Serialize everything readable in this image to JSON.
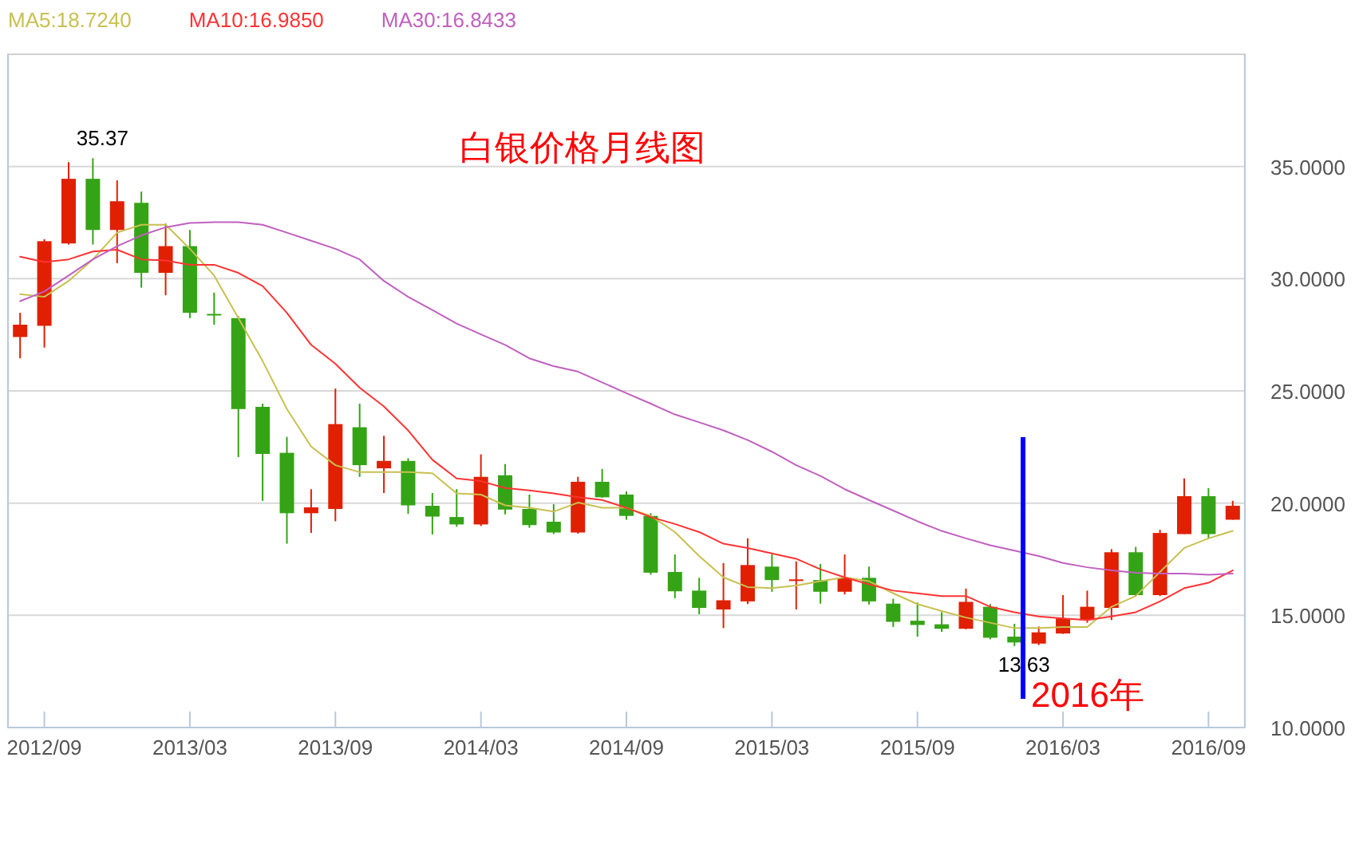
{
  "chart_data": {
    "type": "candlestick",
    "title": "白银价格月线图",
    "categories": [
      null,
      "2012/09",
      null,
      null,
      null,
      null,
      null,
      "2013/03",
      null,
      null,
      null,
      null,
      null,
      "2013/09",
      null,
      null,
      null,
      null,
      null,
      "2014/03",
      null,
      null,
      null,
      null,
      null,
      "2014/09",
      null,
      null,
      null,
      null,
      null,
      "2015/03",
      null,
      null,
      null,
      null,
      null,
      "2015/09",
      null,
      null,
      null,
      null,
      null,
      "2016/03",
      null,
      null,
      null,
      null,
      null,
      "2016/09",
      null
    ],
    "ohlc": [
      [
        27.4,
        28.48,
        26.45,
        27.95
      ],
      [
        27.9,
        31.76,
        26.93,
        31.67
      ],
      [
        31.57,
        35.19,
        31.52,
        34.45
      ],
      [
        34.45,
        35.37,
        31.52,
        32.17
      ],
      [
        32.17,
        34.38,
        30.69,
        33.45
      ],
      [
        33.38,
        33.88,
        29.6,
        30.26
      ],
      [
        30.26,
        32.45,
        29.26,
        31.45
      ],
      [
        31.45,
        32.17,
        28.24,
        28.48
      ],
      [
        28.43,
        29.38,
        27.95,
        28.38
      ],
      [
        28.24,
        28.33,
        22.05,
        24.19
      ],
      [
        24.29,
        24.43,
        20.1,
        22.19
      ],
      [
        22.24,
        22.95,
        18.19,
        19.55
      ],
      [
        19.55,
        20.62,
        18.67,
        19.81
      ],
      [
        19.74,
        25.1,
        19.19,
        23.52
      ],
      [
        23.38,
        24.43,
        21.17,
        21.69
      ],
      [
        21.55,
        23.0,
        20.45,
        21.88
      ],
      [
        21.88,
        22.0,
        19.52,
        19.9
      ],
      [
        19.88,
        20.45,
        18.6,
        19.4
      ],
      [
        19.38,
        20.62,
        18.95,
        19.05
      ],
      [
        19.05,
        22.17,
        18.98,
        21.17
      ],
      [
        21.24,
        21.74,
        19.5,
        19.71
      ],
      [
        19.74,
        20.38,
        18.9,
        19.02
      ],
      [
        19.17,
        19.95,
        18.62,
        18.69
      ],
      [
        18.69,
        21.17,
        18.64,
        20.95
      ],
      [
        20.95,
        21.52,
        20.24,
        20.26
      ],
      [
        20.38,
        20.52,
        19.26,
        19.43
      ],
      [
        19.43,
        19.55,
        16.81,
        16.9
      ],
      [
        16.93,
        17.71,
        15.76,
        16.07
      ],
      [
        16.1,
        16.67,
        15.05,
        15.33
      ],
      [
        15.26,
        17.33,
        14.43,
        15.67
      ],
      [
        15.62,
        18.43,
        15.5,
        17.24
      ],
      [
        17.17,
        17.71,
        16.05,
        16.57
      ],
      [
        16.55,
        17.4,
        15.26,
        16.6
      ],
      [
        16.57,
        17.29,
        15.52,
        16.05
      ],
      [
        16.05,
        17.71,
        15.93,
        16.67
      ],
      [
        16.67,
        17.17,
        15.48,
        15.62
      ],
      [
        15.52,
        15.74,
        14.48,
        14.71
      ],
      [
        14.76,
        15.57,
        14.05,
        14.57
      ],
      [
        14.6,
        15.14,
        14.26,
        14.4
      ],
      [
        14.4,
        16.19,
        14.38,
        15.6
      ],
      [
        15.38,
        15.5,
        13.93,
        14.0
      ],
      [
        14.05,
        14.62,
        13.63,
        13.79
      ],
      [
        13.74,
        14.5,
        13.67,
        14.24
      ],
      [
        14.19,
        15.9,
        14.17,
        14.86
      ],
      [
        14.79,
        16.1,
        14.67,
        15.38
      ],
      [
        15.33,
        17.95,
        14.79,
        17.81
      ],
      [
        17.81,
        18.05,
        15.86,
        15.9
      ],
      [
        15.9,
        18.81,
        15.86,
        18.67
      ],
      [
        18.62,
        21.1,
        18.62,
        20.31
      ],
      [
        20.31,
        20.67,
        18.4,
        18.62
      ],
      [
        19.26,
        20.1,
        19.26,
        19.88
      ]
    ],
    "value_labels": [
      null,
      null,
      null,
      "35.37",
      null,
      null,
      null,
      null,
      null,
      null,
      null,
      null,
      null,
      null,
      null,
      null,
      null,
      null,
      null,
      null,
      null,
      null,
      null,
      null,
      null,
      null,
      null,
      null,
      null,
      null,
      null,
      null,
      null,
      null,
      null,
      null,
      null,
      null,
      null,
      null,
      null,
      "13.63",
      null,
      null,
      null,
      null,
      null,
      null,
      null,
      null,
      null
    ],
    "series": [
      {
        "name": "MA5:18.7240",
        "type": "line",
        "color": "#c8c050",
        "values": [
          29.31,
          29.19,
          29.9,
          30.86,
          32.05,
          32.4,
          32.4,
          31.33,
          30.14,
          28.24,
          26.33,
          24.19,
          22.52,
          21.69,
          21.38,
          21.38,
          21.38,
          21.33,
          20.43,
          20.38,
          19.9,
          19.79,
          19.62,
          20.02,
          19.79,
          19.79,
          19.43,
          18.71,
          17.64,
          16.69,
          16.26,
          16.21,
          16.33,
          16.52,
          16.69,
          16.52,
          15.98,
          15.5,
          15.19,
          14.9,
          14.67,
          14.43,
          14.43,
          14.48,
          14.48,
          15.38,
          15.86,
          16.93,
          18.0,
          18.43,
          18.76
        ]
      },
      {
        "name": "MA10:16.9850",
        "type": "line",
        "color": "#ff3333",
        "values": [
          30.98,
          30.74,
          30.86,
          31.21,
          31.29,
          30.86,
          30.81,
          30.62,
          30.62,
          30.26,
          29.67,
          28.48,
          27.05,
          26.21,
          25.14,
          24.31,
          23.24,
          21.93,
          21.1,
          20.98,
          20.67,
          20.57,
          20.43,
          20.26,
          20.14,
          19.79,
          19.38,
          19.07,
          18.71,
          18.19,
          18.0,
          17.76,
          17.52,
          17.05,
          16.69,
          16.38,
          16.1,
          15.98,
          15.86,
          15.86,
          15.38,
          15.14,
          14.95,
          14.86,
          14.79,
          14.95,
          15.14,
          15.62,
          16.21,
          16.45,
          17.0
        ]
      },
      {
        "name": "MA30:16.8433",
        "type": "line",
        "color": "#c060c0",
        "values": [
          29.0,
          29.43,
          30.14,
          30.86,
          31.45,
          31.93,
          32.29,
          32.48,
          32.52,
          32.52,
          32.4,
          32.05,
          31.69,
          31.33,
          30.86,
          29.9,
          29.19,
          28.6,
          28.0,
          27.52,
          27.05,
          26.45,
          26.1,
          25.86,
          25.38,
          24.9,
          24.43,
          23.95,
          23.6,
          23.24,
          22.81,
          22.29,
          21.69,
          21.21,
          20.62,
          20.14,
          19.67,
          19.19,
          18.76,
          18.43,
          18.12,
          17.88,
          17.64,
          17.33,
          17.14,
          17.0,
          16.9,
          16.86,
          16.86,
          16.81,
          16.86
        ]
      }
    ],
    "ylim": [
      10,
      40
    ],
    "yticks": [
      {
        "value": 10,
        "label": "10.0000"
      },
      {
        "value": 15,
        "label": "15.0000"
      },
      {
        "value": 20,
        "label": "20.0000"
      },
      {
        "value": 25,
        "label": "25.0000"
      },
      {
        "value": 30,
        "label": "30.0000"
      },
      {
        "value": 35,
        "label": "35.0000"
      }
    ],
    "grid": "y",
    "legend": "top",
    "annotations": [
      "2016年"
    ]
  }
}
